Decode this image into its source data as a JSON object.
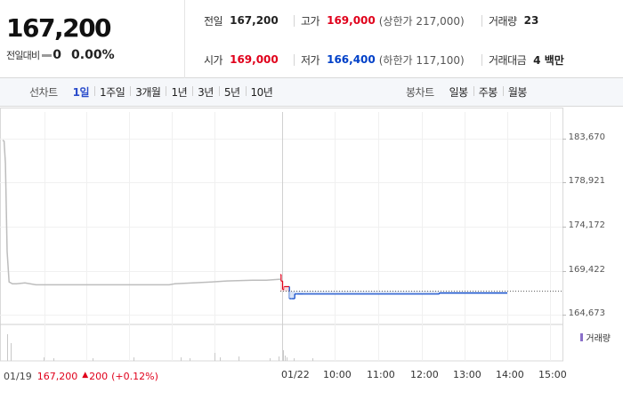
{
  "quote": {
    "price": "167,200",
    "diff_label": "전일대비",
    "diff_value": "0",
    "diff_rate": "0.00%"
  },
  "stats": {
    "prev_close_label": "전일",
    "prev_close": "167,200",
    "high_label": "고가",
    "high": "169,000",
    "upper_limit": "(상한가 217,000)",
    "volume_label": "거래량",
    "volume": "23",
    "open_label": "시가",
    "open": "169,000",
    "low_label": "저가",
    "low": "166,400",
    "lower_limit": "(하한가 117,100)",
    "turnover_label": "거래대금",
    "turnover": "4 백만"
  },
  "colors": {
    "up": "#e0001b",
    "down": "#0040c8",
    "line": "#bdbdbd",
    "volume": "#8a6fc9"
  },
  "line_chart": {
    "title": "선차트",
    "tabs": [
      "1일",
      "1주일",
      "3개월",
      "1년",
      "3년",
      "5년",
      "10년"
    ],
    "active": "1일"
  },
  "candle_chart": {
    "title": "봉차트",
    "tabs": [
      "일봉",
      "주봉",
      "월봉"
    ]
  },
  "chart_data": {
    "type": "line",
    "y_ticks": [
      "183,670",
      "178,921",
      "174,172",
      "169,422",
      "164,673"
    ],
    "ylim": [
      164673,
      183670
    ],
    "x_ticks": [
      "01/22",
      "10:00",
      "11:00",
      "12:00",
      "13:00",
      "14:00",
      "15:00"
    ],
    "reference_price": 167200,
    "prev_day_series": {
      "x": [
        0,
        0.5,
        1.0,
        1.6,
        2.3,
        3.5,
        5,
        8,
        12,
        20,
        30,
        45,
        60,
        62,
        75,
        80,
        90,
        95,
        100
      ],
      "y": [
        183500,
        183400,
        181000,
        171500,
        168200,
        168000,
        168000,
        168100,
        167900,
        167900,
        167900,
        167900,
        167900,
        168000,
        168200,
        168300,
        168400,
        168400,
        168500
      ]
    },
    "today_series": {
      "x": [
        "09:00",
        "09:01",
        "09:03",
        "09:05",
        "09:10",
        "09:12",
        "09:15",
        "09:19",
        "09:22",
        "09:30",
        "10:00",
        "11:00",
        "12:00",
        "12:30",
        "13:00",
        "14:00"
      ],
      "y": [
        169000,
        168300,
        167400,
        167700,
        167700,
        166400,
        166400,
        166900,
        166900,
        166900,
        166900,
        166900,
        166900,
        167000,
        167000,
        167000
      ]
    },
    "volume_legend": "거래량",
    "prev_day_info": {
      "date": "01/19",
      "price": "167,200",
      "change": "200",
      "rate": "(+0.12%)"
    }
  }
}
